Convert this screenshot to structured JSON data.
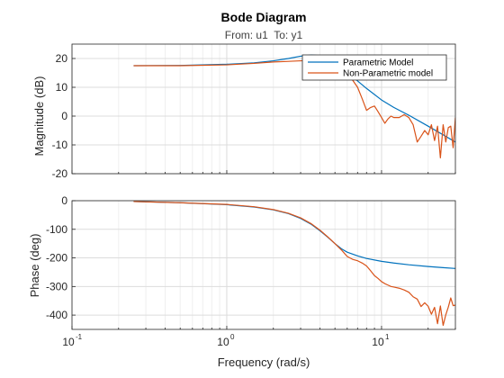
{
  "chart_data": {
    "type": "line",
    "title": "Bode Diagram",
    "subtitle": "From: u1  To: y1",
    "xlabel": "Frequency (rad/s)",
    "xscale": "log",
    "xlim": [
      0.1,
      30
    ],
    "x_ticks": [
      0.1,
      1,
      10
    ],
    "x_tick_labels": [
      {
        "base": "10",
        "exp": "-1"
      },
      {
        "base": "10",
        "exp": "0"
      },
      {
        "base": "10",
        "exp": "1"
      }
    ],
    "grid": true,
    "legend": {
      "position": "top-right",
      "entries": [
        "Parametric Model",
        "Non-Parametric model"
      ]
    },
    "colors": {
      "Parametric Model": "#0072BD",
      "Non-Parametric model": "#D95319"
    },
    "panels": [
      {
        "name": "magnitude",
        "ylabel": "Magnitude (dB)",
        "ylim": [
          -20,
          25
        ],
        "y_ticks": [
          -20,
          -10,
          0,
          10,
          20
        ],
        "series": [
          {
            "name": "Parametric Model",
            "x": [
              0.25,
              0.5,
              1,
              1.5,
              2,
              2.5,
              3,
              3.5,
              4,
              4.5,
              5,
              5.5,
              6,
              7,
              8,
              10,
              12,
              15,
              20,
              25,
              30
            ],
            "y": [
              17.5,
              17.6,
              18.0,
              18.5,
              19.2,
              20.0,
              20.8,
              21.2,
              21.0,
              20.0,
              18.5,
              16.8,
              15.2,
              12.2,
              9.6,
              5.6,
              3.0,
              0.3,
              -3.5,
              -6.5,
              -9.0
            ]
          },
          {
            "name": "Non-Parametric model",
            "x": [
              0.25,
              0.5,
              1,
              1.5,
              2,
              2.5,
              3,
              3.5,
              4,
              4.5,
              5,
              5.5,
              6,
              6.5,
              7,
              7.5,
              8,
              8.5,
              9,
              9.5,
              10,
              10.5,
              11,
              11.5,
              12,
              13,
              14,
              15,
              16,
              17,
              18,
              19,
              20,
              21,
              22,
              23,
              24,
              25,
              26,
              27,
              28,
              29,
              30
            ],
            "y": [
              17.5,
              17.5,
              17.8,
              18.3,
              18.8,
              19.0,
              19.2,
              19.3,
              19.3,
              19.0,
              18.0,
              16.5,
              14.5,
              12.5,
              10.0,
              6.0,
              2.0,
              3.0,
              3.5,
              1.5,
              -0.5,
              -2.5,
              -1.0,
              0.0,
              -0.5,
              -0.5,
              0.5,
              -0.5,
              -3.0,
              -9.0,
              -7.0,
              -5.0,
              -6.5,
              -3.0,
              -8.5,
              -3.5,
              -14.5,
              -3.0,
              -9.0,
              -4.0,
              -3.5,
              -11.0,
              -0.5
            ]
          }
        ]
      },
      {
        "name": "phase",
        "ylabel": "Phase (deg)",
        "ylim": [
          -450,
          0
        ],
        "y_ticks": [
          -400,
          -300,
          -200,
          -100,
          0
        ],
        "series": [
          {
            "name": "Parametric Model",
            "x": [
              0.25,
              0.5,
              1,
              1.5,
              2,
              2.5,
              3,
              3.5,
              4,
              4.5,
              5,
              5.5,
              6,
              7,
              8,
              10,
              12,
              15,
              20,
              25,
              30
            ],
            "y": [
              -3,
              -7,
              -14,
              -22,
              -32,
              -45,
              -62,
              -82,
              -105,
              -128,
              -150,
              -168,
              -180,
              -193,
              -202,
              -212,
              -218,
              -224,
              -230,
              -234,
              -237
            ]
          },
          {
            "name": "Non-Parametric model",
            "x": [
              0.25,
              0.5,
              1,
              1.5,
              2,
              2.5,
              3,
              3.5,
              4,
              4.5,
              5,
              5.5,
              6,
              6.5,
              7,
              7.5,
              8,
              8.5,
              9,
              9.5,
              10,
              10.5,
              11,
              11.5,
              12,
              13,
              14,
              15,
              16,
              17,
              18,
              19,
              20,
              21,
              22,
              23,
              24,
              25,
              26,
              27,
              28,
              29,
              30
            ],
            "y": [
              -3,
              -7,
              -13,
              -21,
              -31,
              -44,
              -60,
              -80,
              -103,
              -127,
              -150,
              -172,
              -195,
              -205,
              -210,
              -218,
              -228,
              -245,
              -262,
              -272,
              -283,
              -290,
              -295,
              -300,
              -302,
              -306,
              -312,
              -320,
              -336,
              -344,
              -370,
              -357,
              -369,
              -397,
              -373,
              -430,
              -368,
              -436,
              -399,
              -372,
              -340,
              -367,
              -365
            ]
          }
        ]
      }
    ]
  }
}
